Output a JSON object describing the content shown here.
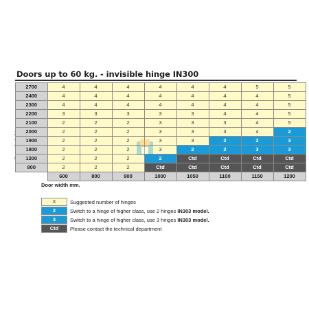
{
  "title": "Doors up to 60 kg. - invisible hinge IN300",
  "y_axis_label": "Door height mm.",
  "x_axis_label": "Door width mm.",
  "widths": [
    "600",
    "800",
    "900",
    "1000",
    "1050",
    "1100",
    "1150",
    "1200"
  ],
  "rows": [
    {
      "height": "2700",
      "cells": [
        {
          "v": "4",
          "c": "x"
        },
        {
          "v": "4",
          "c": "x"
        },
        {
          "v": "4",
          "c": "x"
        },
        {
          "v": "4",
          "c": "x"
        },
        {
          "v": "4",
          "c": "x"
        },
        {
          "v": "4",
          "c": "x"
        },
        {
          "v": "5",
          "c": "x"
        },
        {
          "v": "5",
          "c": "x"
        }
      ]
    },
    {
      "height": "2400",
      "cells": [
        {
          "v": "4",
          "c": "x"
        },
        {
          "v": "4",
          "c": "x"
        },
        {
          "v": "4",
          "c": "x"
        },
        {
          "v": "4",
          "c": "x"
        },
        {
          "v": "4",
          "c": "x"
        },
        {
          "v": "4",
          "c": "x"
        },
        {
          "v": "4",
          "c": "x"
        },
        {
          "v": "5",
          "c": "x"
        }
      ]
    },
    {
      "height": "2300",
      "cells": [
        {
          "v": "4",
          "c": "x"
        },
        {
          "v": "4",
          "c": "x"
        },
        {
          "v": "4",
          "c": "x"
        },
        {
          "v": "4",
          "c": "x"
        },
        {
          "v": "4",
          "c": "x"
        },
        {
          "v": "4",
          "c": "x"
        },
        {
          "v": "4",
          "c": "x"
        },
        {
          "v": "5",
          "c": "x"
        }
      ]
    },
    {
      "height": "2200",
      "cells": [
        {
          "v": "3",
          "c": "x"
        },
        {
          "v": "3",
          "c": "x"
        },
        {
          "v": "3",
          "c": "x"
        },
        {
          "v": "3",
          "c": "x"
        },
        {
          "v": "3",
          "c": "x"
        },
        {
          "v": "4",
          "c": "x"
        },
        {
          "v": "4",
          "c": "x"
        },
        {
          "v": "5",
          "c": "x"
        }
      ]
    },
    {
      "height": "2100",
      "cells": [
        {
          "v": "2",
          "c": "x"
        },
        {
          "v": "2",
          "c": "x"
        },
        {
          "v": "2",
          "c": "x"
        },
        {
          "v": "3",
          "c": "x"
        },
        {
          "v": "3",
          "c": "x"
        },
        {
          "v": "3",
          "c": "x"
        },
        {
          "v": "4",
          "c": "x"
        },
        {
          "v": "5",
          "c": "x"
        }
      ]
    },
    {
      "height": "2000",
      "cells": [
        {
          "v": "2",
          "c": "x"
        },
        {
          "v": "2",
          "c": "x"
        },
        {
          "v": "2",
          "c": "x"
        },
        {
          "v": "3",
          "c": "x"
        },
        {
          "v": "3",
          "c": "x"
        },
        {
          "v": "3",
          "c": "x"
        },
        {
          "v": "4",
          "c": "x"
        },
        {
          "v": "2",
          "c": "2"
        }
      ]
    },
    {
      "height": "1900",
      "cells": [
        {
          "v": "2",
          "c": "x"
        },
        {
          "v": "2",
          "c": "x"
        },
        {
          "v": "2",
          "c": "x"
        },
        {
          "v": "3",
          "c": "x"
        },
        {
          "v": "3",
          "c": "x"
        },
        {
          "v": "2",
          "c": "2"
        },
        {
          "v": "2",
          "c": "2"
        },
        {
          "v": "3",
          "c": "3"
        }
      ]
    },
    {
      "height": "1800",
      "cells": [
        {
          "v": "2",
          "c": "x"
        },
        {
          "v": "2",
          "c": "x"
        },
        {
          "v": "2",
          "c": "x"
        },
        {
          "v": "3",
          "c": "x"
        },
        {
          "v": "2",
          "c": "2"
        },
        {
          "v": "2",
          "c": "2"
        },
        {
          "v": "3",
          "c": "3"
        },
        {
          "v": "3",
          "c": "3"
        }
      ]
    },
    {
      "height": "1200",
      "cells": [
        {
          "v": "2",
          "c": "x"
        },
        {
          "v": "2",
          "c": "x"
        },
        {
          "v": "2",
          "c": "x"
        },
        {
          "v": "2",
          "c": "2"
        },
        {
          "v": "Ctd",
          "c": "ctd"
        },
        {
          "v": "Ctd",
          "c": "ctd"
        },
        {
          "v": "Ctd",
          "c": "ctd"
        },
        {
          "v": "Ctd",
          "c": "ctd"
        }
      ]
    },
    {
      "height": "800",
      "cells": [
        {
          "v": "2",
          "c": "x"
        },
        {
          "v": "2",
          "c": "x"
        },
        {
          "v": "2",
          "c": "x"
        },
        {
          "v": "Ctd",
          "c": "ctd"
        },
        {
          "v": "Ctd",
          "c": "ctd"
        },
        {
          "v": "Ctd",
          "c": "ctd"
        },
        {
          "v": "Ctd",
          "c": "ctd"
        },
        {
          "v": "Ctd",
          "c": "ctd"
        }
      ]
    }
  ],
  "legend": [
    {
      "swatch": "X",
      "c": "x",
      "text": "Suggested number of hinges",
      "bold": ""
    },
    {
      "swatch": "2",
      "c": "2",
      "text": "Switch to a hinge of  higher class, use 2 hinges ",
      "bold": "IN303 model."
    },
    {
      "swatch": "3",
      "c": "3",
      "text": "Switch to a hinge of  higher class, use 3 hinges ",
      "bold": "IN303 model."
    },
    {
      "swatch": "Ctd",
      "c": "ctd",
      "text": "Please contact the technical department",
      "bold": ""
    }
  ],
  "colors": {
    "suggested": "#fffac8",
    "higher_class": "#1a9ad6",
    "contact": "#555555",
    "header": "#d3d3d3"
  }
}
